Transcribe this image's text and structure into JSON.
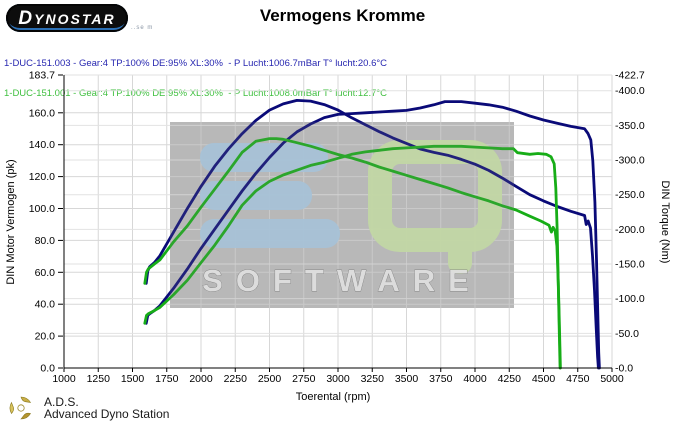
{
  "header": {
    "logo_text": "DYNOSTAR",
    "logo_subtext": "..se m",
    "title": "Vermogens Kromme"
  },
  "legend": {
    "runs": [
      {
        "label": "1-DUC-151.003 - Gear:4 TP:100% DE:95% XL:30%  - P Lucht:1006.7mBar T° lucht:20.6°C",
        "color": "#2727b0"
      },
      {
        "label": "1-DUC-151.001 - Gear:4 TP:100% DE:95% XL:30%  - P Lucht:1008.0mBar T° lucht:12.7°C",
        "color": "#3fbf3f"
      }
    ]
  },
  "watermark": {
    "line1": "EQ",
    "line2": "SOFTWARE",
    "e_color": "#aecfe8",
    "q_color": "#cfe8ab",
    "software_color": "#f2f2f2",
    "panel_color": "#8a8a8a"
  },
  "footer": {
    "abbr": "A.D.S.",
    "name": "Advanced Dyno Station"
  },
  "chart_data": {
    "type": "line",
    "title": "Vermogens Kromme",
    "xlabel": "Toerental (rpm)",
    "ylabel_left": "DIN Motor Vermogen (pk)",
    "ylabel_right": "DIN Torque (Nm)",
    "xlim": [
      1000,
      5000
    ],
    "ylim_left": [
      0,
      183.7
    ],
    "ylim_right": [
      0,
      422.7
    ],
    "grid": true,
    "x_ticks": {
      "values": [
        1000,
        1250,
        1500,
        1750,
        2000,
        2250,
        2500,
        2750,
        3000,
        3250,
        3500,
        3750,
        4000,
        4250,
        4500,
        4750,
        5000
      ],
      "labels": [
        "1000",
        "1250",
        "1500",
        "1750",
        "2000",
        "2250",
        "2500",
        "2750",
        "3000",
        "3250",
        "3500",
        "3750",
        "4000",
        "4250",
        "4500",
        "4750",
        "5000"
      ]
    },
    "y_left_ticks": {
      "values": [
        0,
        20,
        40,
        60,
        80,
        100,
        120,
        140,
        160,
        183.7
      ],
      "labels": [
        "0.0",
        "20.0",
        "40.0",
        "60.0",
        "80.0",
        "100.0",
        "120.0",
        "140.0",
        "160.0",
        "183.7"
      ]
    },
    "y_right_ticks": {
      "values": [
        0,
        50,
        100,
        150,
        200,
        250,
        300,
        350,
        400,
        422.7
      ],
      "labels": [
        "-0.0",
        "-50.0",
        "-100.0",
        "-150.0",
        "-200.0",
        "-250.0",
        "-300.0",
        "-350.0",
        "-400.0",
        "-422.7"
      ]
    },
    "series": [
      {
        "name": "torque-003",
        "run": "1-DUC-151.003",
        "axis": "right",
        "unit": "Nm",
        "color": "#0a0a78",
        "points": [
          [
            1600,
            122
          ],
          [
            1612,
            140
          ],
          [
            1625,
            146
          ],
          [
            1660,
            152
          ],
          [
            1700,
            162
          ],
          [
            1800,
            196
          ],
          [
            1900,
            230
          ],
          [
            2000,
            262
          ],
          [
            2100,
            291
          ],
          [
            2200,
            316
          ],
          [
            2300,
            338
          ],
          [
            2400,
            357
          ],
          [
            2500,
            372
          ],
          [
            2600,
            381
          ],
          [
            2700,
            386
          ],
          [
            2800,
            385
          ],
          [
            2900,
            380
          ],
          [
            3000,
            372
          ],
          [
            3100,
            361
          ],
          [
            3200,
            351
          ],
          [
            3300,
            341
          ],
          [
            3400,
            332
          ],
          [
            3500,
            324
          ],
          [
            3600,
            316
          ],
          [
            3700,
            311
          ],
          [
            3800,
            307
          ],
          [
            3900,
            301
          ],
          [
            4000,
            294
          ],
          [
            4100,
            285
          ],
          [
            4200,
            274
          ],
          [
            4300,
            262
          ],
          [
            4400,
            250
          ],
          [
            4500,
            241
          ],
          [
            4600,
            233
          ],
          [
            4700,
            226
          ],
          [
            4800,
            220
          ],
          [
            4812,
            207
          ],
          [
            4826,
            212
          ],
          [
            4843,
            202
          ],
          [
            4858,
            162
          ],
          [
            4872,
            112
          ],
          [
            4885,
            58
          ],
          [
            4895,
            16
          ],
          [
            4901,
            0
          ]
        ]
      },
      {
        "name": "power-003",
        "run": "1-DUC-151.003",
        "axis": "left",
        "unit": "pk",
        "color": "#0a0a78",
        "points": [
          [
            1600,
            28
          ],
          [
            1612,
            33
          ],
          [
            1625,
            34
          ],
          [
            1660,
            36
          ],
          [
            1700,
            39
          ],
          [
            1800,
            50
          ],
          [
            1900,
            62
          ],
          [
            2000,
            75
          ],
          [
            2100,
            87
          ],
          [
            2200,
            99
          ],
          [
            2300,
            111
          ],
          [
            2400,
            122
          ],
          [
            2500,
            132
          ],
          [
            2600,
            141
          ],
          [
            2700,
            148
          ],
          [
            2800,
            153
          ],
          [
            2900,
            157
          ],
          [
            3000,
            159
          ],
          [
            3100,
            159.5
          ],
          [
            3200,
            160
          ],
          [
            3300,
            160.5
          ],
          [
            3400,
            161
          ],
          [
            3500,
            161.5
          ],
          [
            3600,
            163
          ],
          [
            3700,
            165
          ],
          [
            3780,
            167
          ],
          [
            3900,
            167
          ],
          [
            4000,
            166
          ],
          [
            4100,
            165
          ],
          [
            4200,
            163.5
          ],
          [
            4300,
            161
          ],
          [
            4400,
            158
          ],
          [
            4500,
            155.5
          ],
          [
            4600,
            153.5
          ],
          [
            4700,
            151.5
          ],
          [
            4800,
            150
          ],
          [
            4825,
            147
          ],
          [
            4845,
            143
          ],
          [
            4860,
            130
          ],
          [
            4875,
            104
          ],
          [
            4887,
            68
          ],
          [
            4896,
            34
          ],
          [
            4903,
            10
          ],
          [
            4908,
            0
          ]
        ]
      },
      {
        "name": "torque-001",
        "run": "1-DUC-151.001",
        "axis": "right",
        "unit": "Nm",
        "color": "#17ad17",
        "points": [
          [
            1590,
            122
          ],
          [
            1602,
            138
          ],
          [
            1615,
            143
          ],
          [
            1660,
            150
          ],
          [
            1700,
            156
          ],
          [
            1800,
            182
          ],
          [
            1900,
            205
          ],
          [
            2000,
            232
          ],
          [
            2100,
            258
          ],
          [
            2200,
            284
          ],
          [
            2300,
            311
          ],
          [
            2400,
            327
          ],
          [
            2500,
            331
          ],
          [
            2550,
            331
          ],
          [
            2600,
            330
          ],
          [
            2700,
            325
          ],
          [
            2800,
            320
          ],
          [
            2900,
            314
          ],
          [
            3000,
            308
          ],
          [
            3100,
            303
          ],
          [
            3200,
            297
          ],
          [
            3300,
            290
          ],
          [
            3400,
            284
          ],
          [
            3500,
            278
          ],
          [
            3600,
            272
          ],
          [
            3700,
            266
          ],
          [
            3800,
            260
          ],
          [
            3900,
            253
          ],
          [
            4000,
            247
          ],
          [
            4100,
            241
          ],
          [
            4200,
            234
          ],
          [
            4300,
            228
          ],
          [
            4400,
            219
          ],
          [
            4480,
            212
          ],
          [
            4540,
            206
          ],
          [
            4558,
            196
          ],
          [
            4570,
            203
          ],
          [
            4585,
            198
          ],
          [
            4598,
            176
          ],
          [
            4608,
            122
          ],
          [
            4616,
            62
          ],
          [
            4623,
            0
          ]
        ]
      },
      {
        "name": "power-001",
        "run": "1-DUC-151.001",
        "axis": "left",
        "unit": "pk",
        "color": "#17ad17",
        "points": [
          [
            1590,
            28
          ],
          [
            1602,
            33
          ],
          [
            1615,
            34
          ],
          [
            1660,
            36
          ],
          [
            1700,
            38
          ],
          [
            1800,
            46
          ],
          [
            1900,
            55
          ],
          [
            2000,
            66
          ],
          [
            2100,
            77
          ],
          [
            2200,
            89
          ],
          [
            2300,
            102
          ],
          [
            2400,
            111
          ],
          [
            2500,
            117
          ],
          [
            2600,
            121
          ],
          [
            2700,
            124
          ],
          [
            2800,
            127
          ],
          [
            2900,
            129
          ],
          [
            3000,
            131.5
          ],
          [
            3100,
            134
          ],
          [
            3200,
            135.5
          ],
          [
            3300,
            136.5
          ],
          [
            3400,
            137.5
          ],
          [
            3500,
            138
          ],
          [
            3600,
            138.5
          ],
          [
            3700,
            139
          ],
          [
            3800,
            139
          ],
          [
            3900,
            139
          ],
          [
            4000,
            138.5
          ],
          [
            4100,
            138
          ],
          [
            4200,
            137.5
          ],
          [
            4280,
            137.5
          ],
          [
            4310,
            135
          ],
          [
            4400,
            134
          ],
          [
            4460,
            134.5
          ],
          [
            4520,
            134
          ],
          [
            4555,
            132.5
          ],
          [
            4578,
            128
          ],
          [
            4590,
            113
          ],
          [
            4600,
            86
          ],
          [
            4608,
            52
          ],
          [
            4615,
            22
          ],
          [
            4621,
            0
          ]
        ]
      }
    ]
  }
}
